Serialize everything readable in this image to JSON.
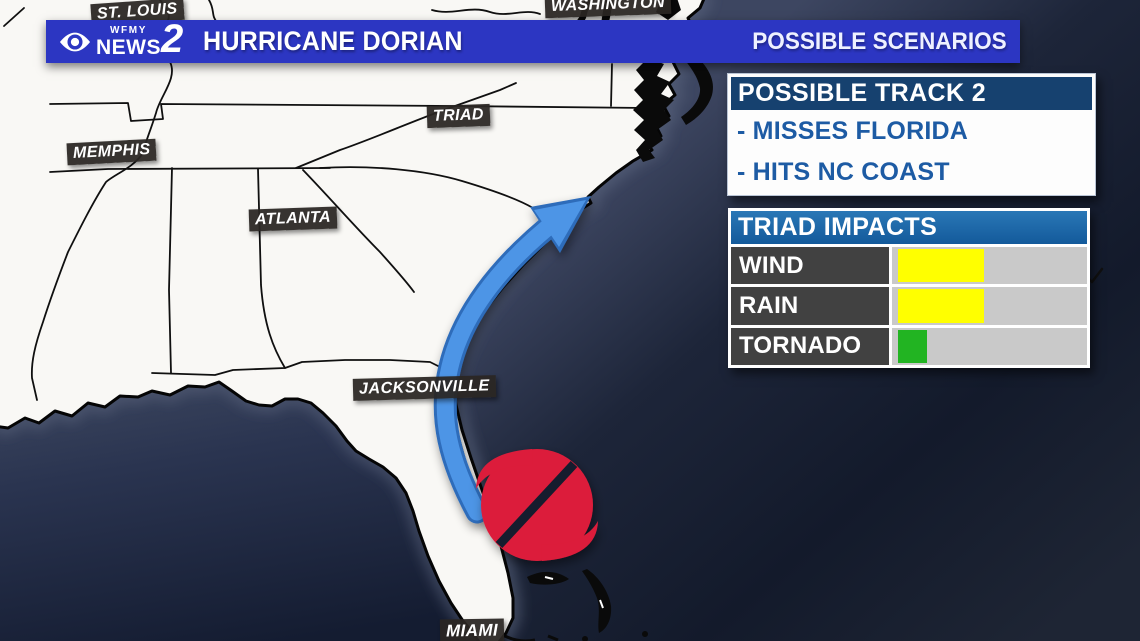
{
  "banner": {
    "station": {
      "small_text": "WFMY",
      "word": "NEWS",
      "channel": "2"
    },
    "title": "HURRICANE DORIAN",
    "right_label": "POSSIBLE SCENARIOS",
    "bg_color": "#2c36c2"
  },
  "track_panel": {
    "header": "POSSIBLE TRACK 2",
    "bullet1": "- MISSES FLORIDA",
    "bullet2": "- HITS NC COAST",
    "header_bg": "#16416f",
    "bullet_color": "#1d5ba4"
  },
  "impacts_panel": {
    "header": "TRIAD IMPACTS",
    "header_bg": "#1a6aae",
    "rows": [
      {
        "label": "WIND",
        "level_pct": 44,
        "color": "#ffff00"
      },
      {
        "label": "RAIN",
        "level_pct": 44,
        "color": "#ffff00"
      },
      {
        "label": "TORNADO",
        "level_pct": 15,
        "color": "#22b422"
      }
    ],
    "label_bg": "#414141",
    "track_bg": "#c9c9c9"
  },
  "map": {
    "labels": {
      "st_louis": "ST. LOUIS",
      "washington": "WASHINGTON",
      "memphis": "MEMPHIS",
      "triad": "TRIAD",
      "atlanta": "ATLANTA",
      "jacksonville": "JACKSONVILLE",
      "miami": "MIAMI"
    },
    "hurricane_symbol_color": "#dc1f3a",
    "track_arrow_color": "#4e95e6",
    "land_color": "#f9f8f5",
    "ocean_color": "#141b2c"
  }
}
